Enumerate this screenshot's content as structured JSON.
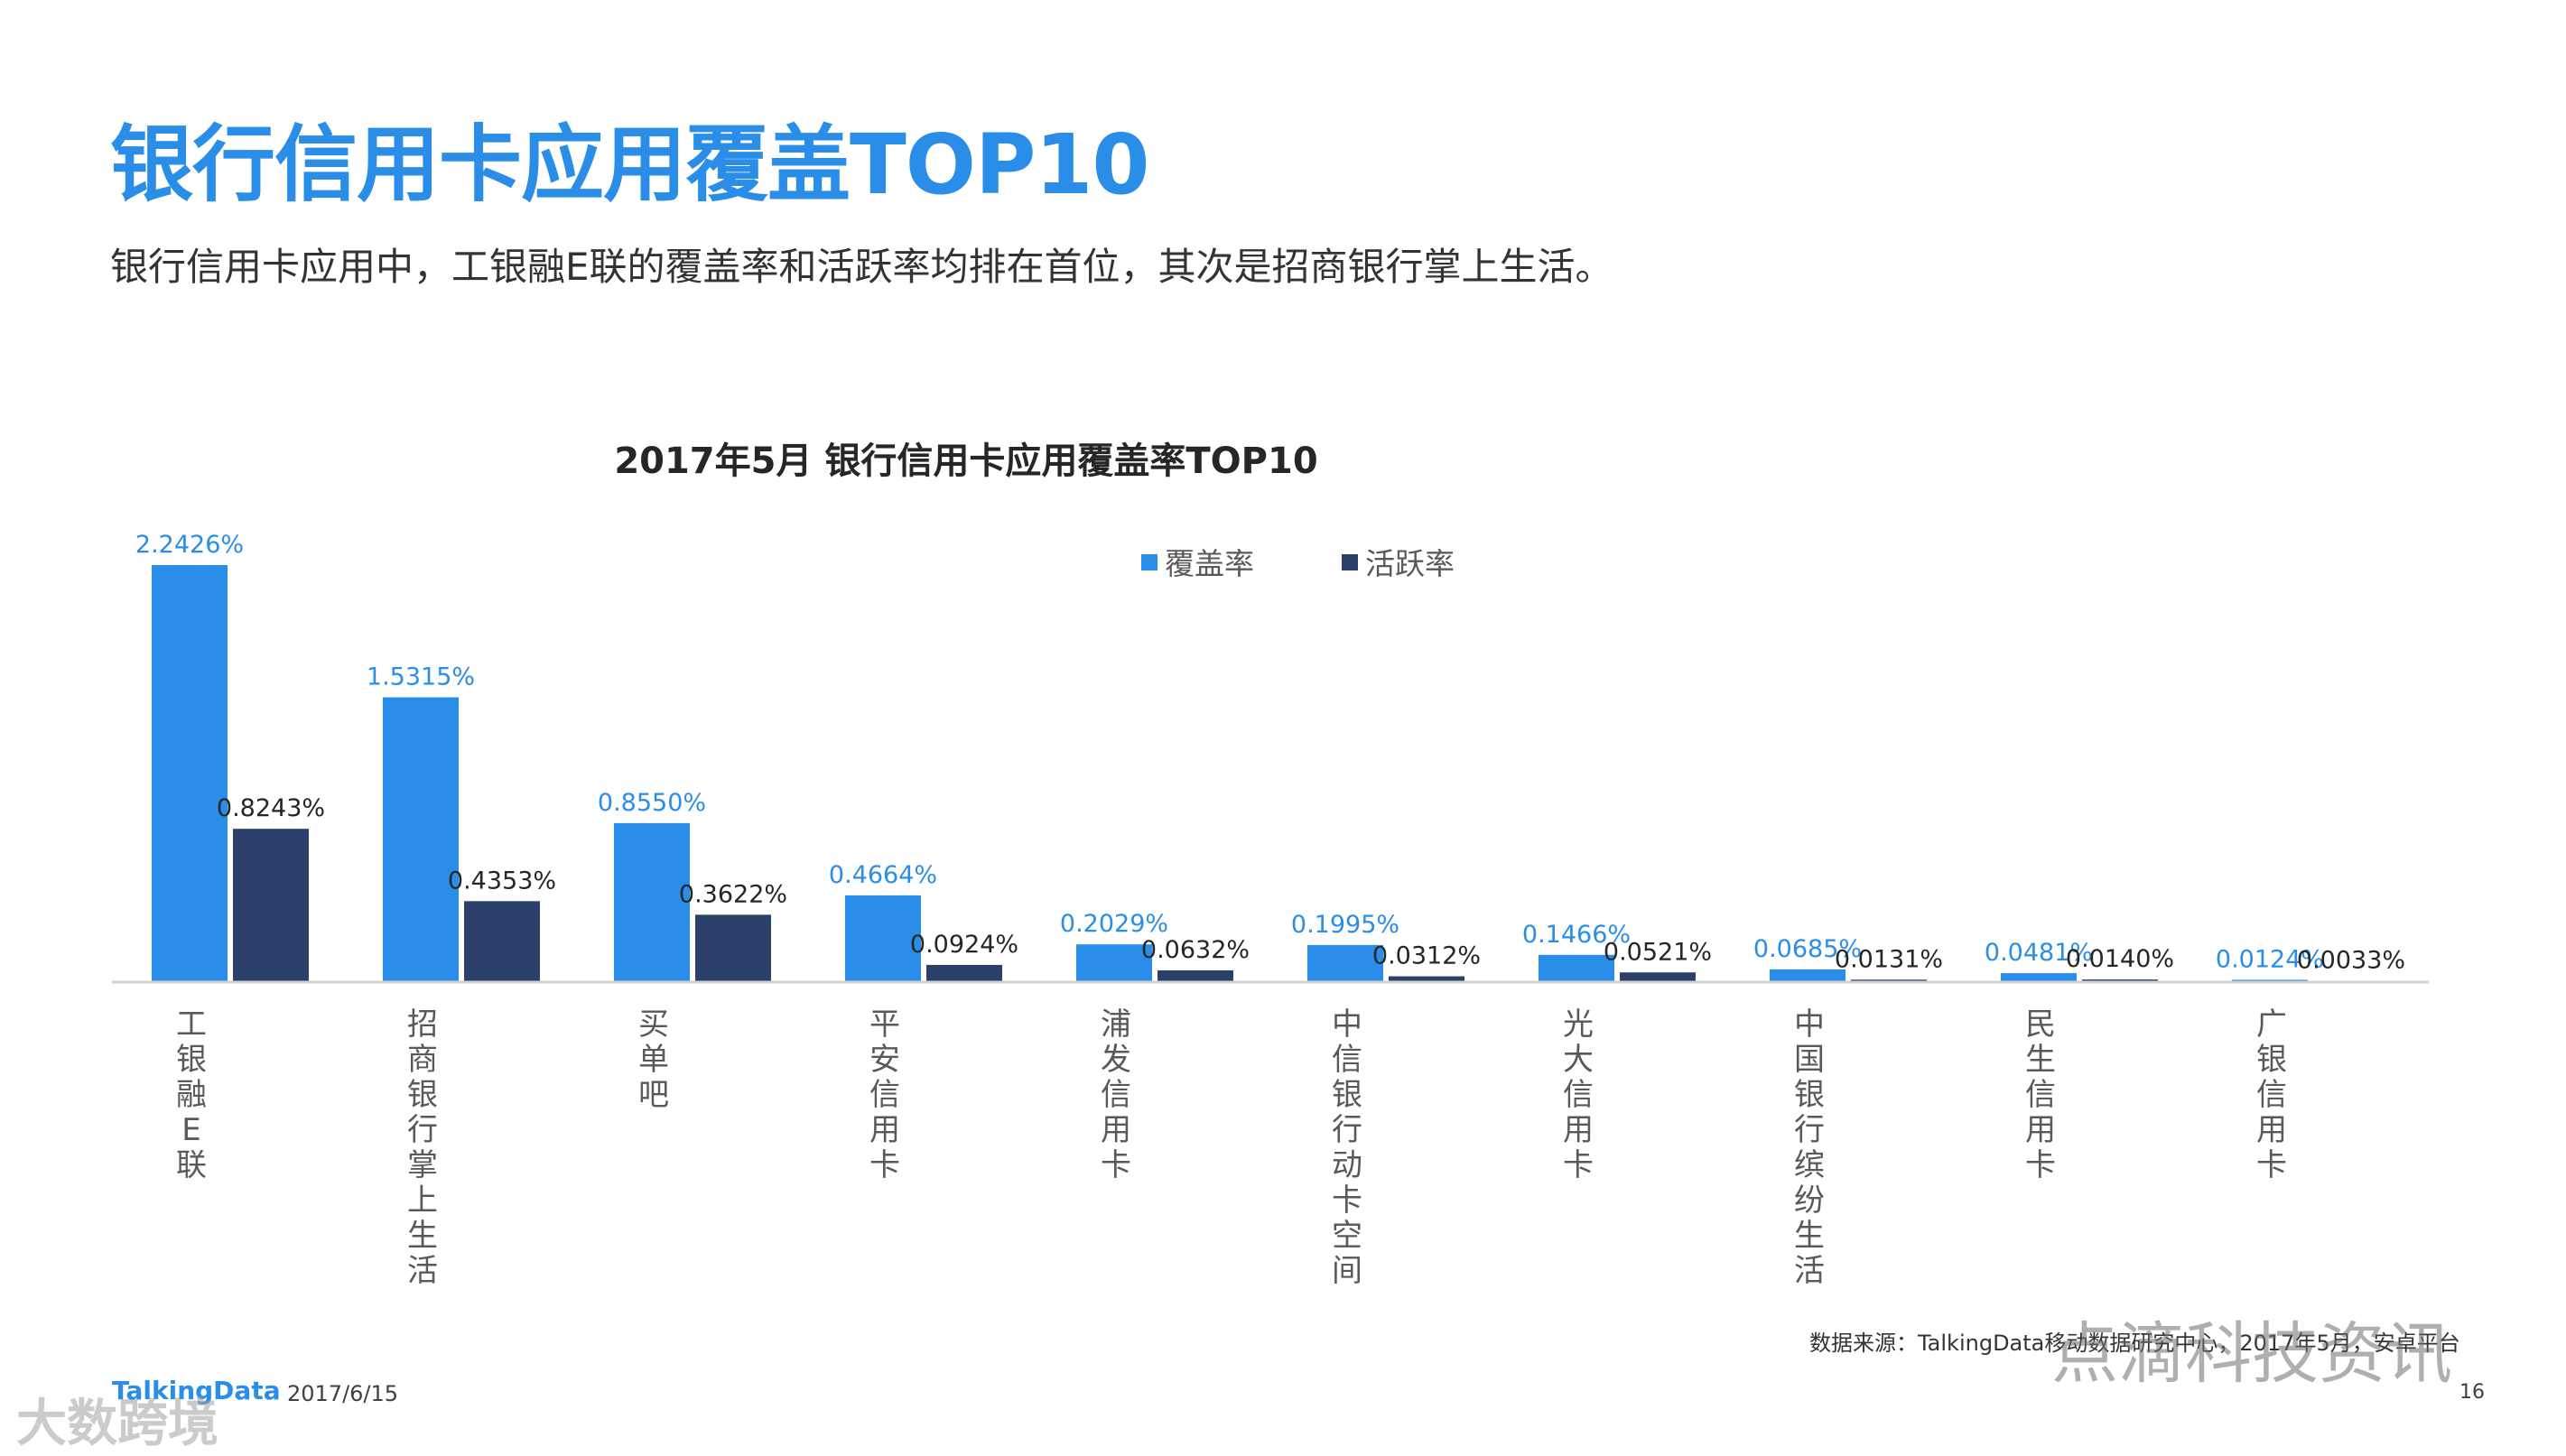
{
  "page": {
    "title": "银行信用卡应用覆盖TOP10",
    "subtitle": "银行信用卡应用中，工银融E联的覆盖率和活跃率均排在首位，其次是招商银行掌上生活。",
    "source": "数据来源：TalkingData移动数据研究中心，2017年5月，安卓平台",
    "brand": "TalkingData",
    "date": "2017/6/15",
    "page_number": "16",
    "watermark_left": "大数跨境",
    "watermark_right": "点滴科技资讯"
  },
  "colors": {
    "coverage": "#2A8EE8",
    "activity": "#2B3F6B",
    "title": "#2A8EE8"
  },
  "chart_data": {
    "type": "bar",
    "title": "2017年5月 银行信用卡应用覆盖率TOP10",
    "categories": [
      "工银融E联",
      "招商银行掌上生活",
      "买单吧",
      "平安信用卡",
      "浦发信用卡",
      "中信银行动卡空间",
      "光大信用卡",
      "中国银行缤纷生活",
      "民生信用卡",
      "广银信用卡"
    ],
    "series": [
      {
        "name": "覆盖率",
        "values": [
          2.2426,
          1.5315,
          0.855,
          0.4664,
          0.2029,
          0.1995,
          0.1466,
          0.0685,
          0.0481,
          0.0124
        ],
        "labels": [
          "2.2426%",
          "1.5315%",
          "0.8550%",
          "0.4664%",
          "0.2029%",
          "0.1995%",
          "0.1466%",
          "0.0685%",
          "0.0481%",
          "0.0124%"
        ]
      },
      {
        "name": "活跃率",
        "values": [
          0.8243,
          0.4353,
          0.3622,
          0.0924,
          0.0632,
          0.0312,
          0.0521,
          0.0131,
          0.014,
          0.0033
        ],
        "labels": [
          "0.8243%",
          "0.4353%",
          "0.3622%",
          "0.0924%",
          "0.0632%",
          "0.0312%",
          "0.0521%",
          "0.0131%",
          "0.0140%",
          "0.0033%"
        ]
      }
    ],
    "ylim": [
      0,
      2.2426
    ],
    "legend_position": "top-center",
    "grid": false
  }
}
